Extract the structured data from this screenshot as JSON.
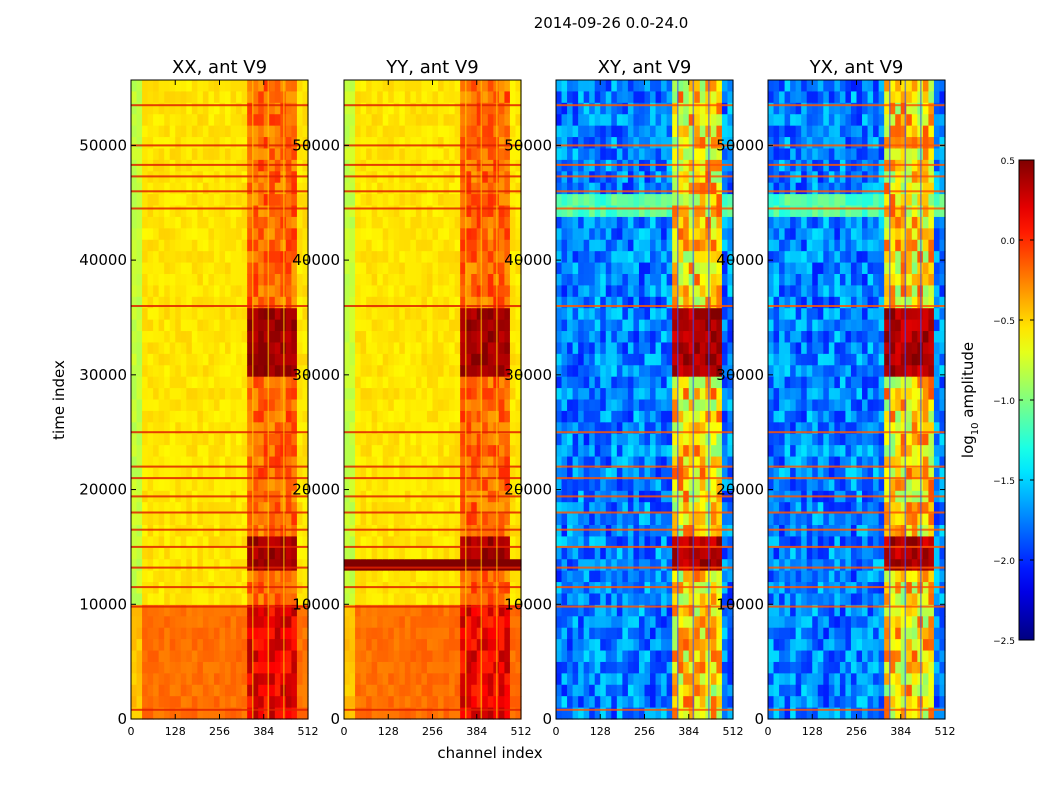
{
  "suptitle": "2014-09-26 0.0-24.0",
  "xlabel": "channel index",
  "ylabel": "time index",
  "colorbar": {
    "label_base": "log",
    "label_sub": "10",
    "label_rest": " amplitude",
    "range": [
      -2.5,
      0.5
    ],
    "ticks": [
      0.5,
      0.0,
      -0.5,
      -1.0,
      -1.5,
      -2.0,
      -2.5
    ],
    "tick_labels": [
      "0.5",
      "0.0",
      "−0.5",
      "−1.0",
      "−1.5",
      "−2.0",
      "−2.5"
    ],
    "colormap": "jet"
  },
  "chart_data": [
    {
      "type": "heatmap",
      "title": "XX, ant V9",
      "pol": "XX",
      "xlim": [
        0,
        512
      ],
      "ylim": [
        0,
        55700
      ],
      "xticks": [
        0,
        128,
        256,
        384,
        512
      ],
      "yticks": [
        0,
        10000,
        20000,
        30000,
        40000,
        50000
      ]
    },
    {
      "type": "heatmap",
      "title": "YY, ant V9",
      "pol": "YY",
      "xlim": [
        0,
        512
      ],
      "ylim": [
        0,
        55700
      ],
      "xticks": [
        0,
        128,
        256,
        384,
        512
      ],
      "yticks": [
        0,
        10000,
        20000,
        30000,
        40000,
        50000
      ]
    },
    {
      "type": "heatmap",
      "title": "XY, ant V9",
      "pol": "XY",
      "xlim": [
        0,
        512
      ],
      "ylim": [
        0,
        55700
      ],
      "xticks": [
        0,
        128,
        256,
        384,
        512
      ],
      "yticks": [
        0,
        10000,
        20000,
        30000,
        40000,
        50000
      ]
    },
    {
      "type": "heatmap",
      "title": "YX, ant V9",
      "pol": "YX",
      "xlim": [
        0,
        512
      ],
      "ylim": [
        0,
        55700
      ],
      "xticks": [
        0,
        128,
        256,
        384,
        512
      ],
      "yticks": [
        0,
        10000,
        20000,
        30000,
        40000,
        50000
      ]
    }
  ]
}
